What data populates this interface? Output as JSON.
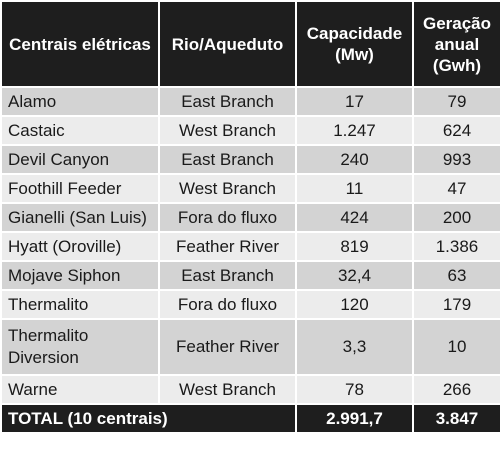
{
  "table": {
    "headers": {
      "plant": "Centrais elétricas",
      "river": "Rio/Aqueduto",
      "capacity": "Capacidade (Mw)",
      "generation": "Geração anual (Gwh)"
    },
    "rows": [
      {
        "plant": "Alamo",
        "river": "East Branch",
        "capacity": "17",
        "generation": "79"
      },
      {
        "plant": "Castaic",
        "river": "West Branch",
        "capacity": "1.247",
        "generation": "624"
      },
      {
        "plant": "Devil Canyon",
        "river": "East Branch",
        "capacity": "240",
        "generation": "993"
      },
      {
        "plant": "Foothill Feeder",
        "river": "West Branch",
        "capacity": "11",
        "generation": "47"
      },
      {
        "plant": "Gianelli (San Luis)",
        "river": "Fora do fluxo",
        "capacity": "424",
        "generation": "200"
      },
      {
        "plant": "Hyatt (Oroville)",
        "river": "Feather River",
        "capacity": "819",
        "generation": "1.386"
      },
      {
        "plant": "Mojave Siphon",
        "river": "East Branch",
        "capacity": "32,4",
        "generation": "63"
      },
      {
        "plant": "Thermalito",
        "river": "Fora do fluxo",
        "capacity": "120",
        "generation": "179"
      },
      {
        "plant": "Thermalito Diversion",
        "river": "Feather River",
        "capacity": "3,3",
        "generation": "10"
      },
      {
        "plant": "Warne",
        "river": "West Branch",
        "capacity": "78",
        "generation": "266"
      }
    ],
    "total": {
      "label": "TOTAL (10 centrais)",
      "capacity": "2.991,7",
      "generation": "3.847"
    }
  }
}
